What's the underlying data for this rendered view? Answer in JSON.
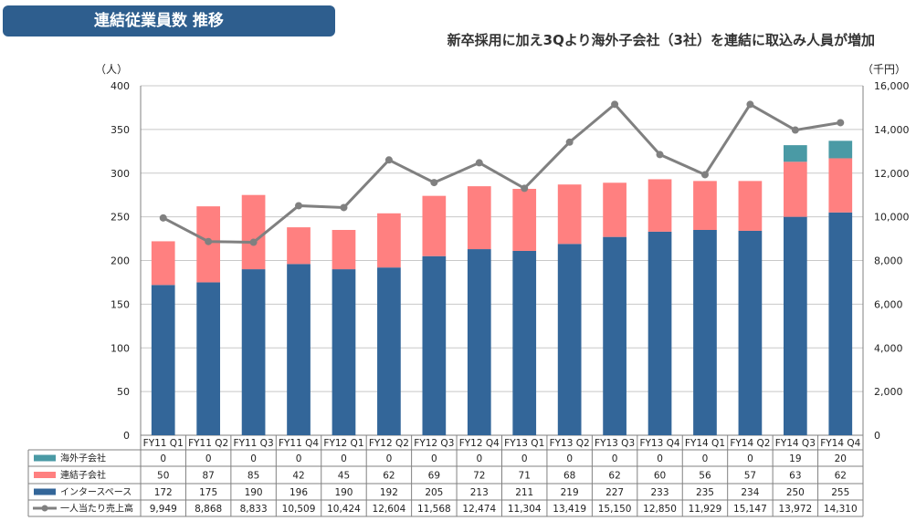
{
  "header": {
    "title": "連結従業員数 推移",
    "headline": "新卒採用に加え3Qより海外子会社（3社）を連結に取込み人員が増加"
  },
  "chart_data": {
    "type": "bar",
    "stacked": true,
    "categories": [
      "FY11 Q1",
      "FY11 Q2",
      "FY11 Q3",
      "FY11 Q4",
      "FY12 Q1",
      "FY12 Q2",
      "FY12 Q3",
      "FY12 Q4",
      "FY13 Q1",
      "FY13 Q2",
      "FY13 Q3",
      "FY13 Q4",
      "FY14 Q1",
      "FY14 Q2",
      "FY14 Q3",
      "FY14 Q4"
    ],
    "left_unit": "（人）",
    "right_unit": "（千円）",
    "ylim": [
      0,
      400
    ],
    "y_ticks": [
      0,
      50,
      100,
      150,
      200,
      250,
      300,
      350,
      400
    ],
    "y2lim": [
      0,
      16000
    ],
    "y2_ticks": [
      "0",
      "2,000",
      "4,000",
      "6,000",
      "8,000",
      "10,000",
      "12,000",
      "14,000",
      "16,000"
    ],
    "grid": true,
    "series": [
      {
        "name": "海外子会社",
        "color": "#4a9aa5",
        "kind": "bar",
        "values": [
          0,
          0,
          0,
          0,
          0,
          0,
          0,
          0,
          0,
          0,
          0,
          0,
          0,
          0,
          19,
          20
        ]
      },
      {
        "name": "連結子会社",
        "color": "#ff8080",
        "kind": "bar",
        "values": [
          50,
          87,
          85,
          42,
          45,
          62,
          69,
          72,
          71,
          68,
          62,
          60,
          56,
          57,
          63,
          62
        ]
      },
      {
        "name": "インタースペース",
        "color": "#336699",
        "kind": "bar",
        "values": [
          172,
          175,
          190,
          196,
          190,
          192,
          205,
          213,
          211,
          219,
          227,
          233,
          235,
          234,
          250,
          255
        ]
      },
      {
        "name": "一人当たり売上高",
        "color": "#808080",
        "kind": "line",
        "axis": "right",
        "values": [
          9949,
          8868,
          8833,
          10509,
          10424,
          12604,
          11568,
          12474,
          11304,
          13419,
          15150,
          12850,
          11929,
          15147,
          13972,
          14310
        ],
        "labels": [
          "9,949",
          "8,868",
          "8,833",
          "10,509",
          "10,424",
          "12,604",
          "11,568",
          "12,474",
          "11,304",
          "13,419",
          "15,150",
          "12,850",
          "11,929",
          "15,147",
          "13,972",
          "14,310"
        ]
      }
    ]
  }
}
